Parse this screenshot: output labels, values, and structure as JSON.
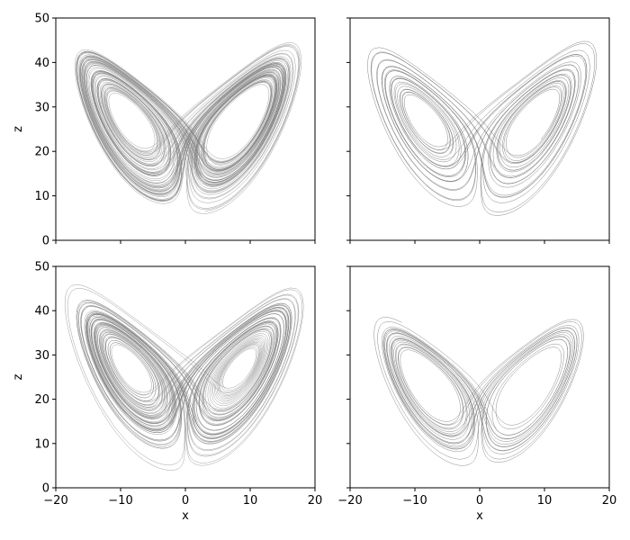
{
  "chart_data": [
    {
      "type": "line",
      "panel": "top-left",
      "description_series": "Lorenz attractor trajectory projected on x-z plane (dense)",
      "xlim": [
        -20,
        20
      ],
      "ylim": [
        0,
        50
      ],
      "xticks": [
        "−20",
        "−10",
        "0",
        "10",
        "20"
      ],
      "xtick_values": [
        -20,
        -10,
        0,
        10,
        20
      ],
      "yticks": [
        "0",
        "10",
        "20",
        "30",
        "40",
        "50"
      ],
      "ytick_values": [
        0,
        10,
        20,
        30,
        40,
        50
      ],
      "show_xticklabels": false,
      "show_yticklabels": true,
      "xlabel": "",
      "ylabel": "z",
      "line_color": "#808080",
      "sigma": 10,
      "rho": 28,
      "beta": 2.6667,
      "seed": [
        1.0,
        1.0,
        20.0
      ],
      "steps": 9000,
      "dt": 0.01,
      "skip": 200,
      "alpha": 0.75
    },
    {
      "type": "line",
      "panel": "top-right",
      "description_series": "Lorenz attractor trajectory projected on x-z plane (sparse)",
      "xlim": [
        -20,
        20
      ],
      "ylim": [
        0,
        50
      ],
      "xticks": [
        "−20",
        "−10",
        "0",
        "10",
        "20"
      ],
      "xtick_values": [
        -20,
        -10,
        0,
        10,
        20
      ],
      "yticks": [
        "0",
        "10",
        "20",
        "30",
        "40",
        "50"
      ],
      "ytick_values": [
        0,
        10,
        20,
        30,
        40,
        50
      ],
      "show_xticklabels": false,
      "show_yticklabels": false,
      "xlabel": "",
      "ylabel": "",
      "line_color": "#808080",
      "sigma": 10,
      "rho": 28,
      "beta": 2.6667,
      "seed": [
        -2.0,
        3.0,
        25.0
      ],
      "steps": 3500,
      "dt": 0.01,
      "skip": 200,
      "alpha": 0.95
    },
    {
      "type": "line",
      "panel": "bottom-left",
      "description_series": "Lorenz attractor trajectory projected on x-z plane (dense)",
      "xlim": [
        -20,
        20
      ],
      "ylim": [
        0,
        50
      ],
      "xticks": [
        "−20",
        "−10",
        "0",
        "10",
        "20"
      ],
      "xtick_values": [
        -20,
        -10,
        0,
        10,
        20
      ],
      "yticks": [
        "0",
        "10",
        "20",
        "30",
        "40",
        "50"
      ],
      "ytick_values": [
        0,
        10,
        20,
        30,
        40,
        50
      ],
      "show_xticklabels": true,
      "show_yticklabels": true,
      "xlabel": "x",
      "ylabel": "z",
      "line_color": "#808080",
      "sigma": 10,
      "rho": 28,
      "beta": 2.6667,
      "seed": [
        0.5,
        -1.5,
        15.0
      ],
      "steps": 9000,
      "dt": 0.01,
      "skip": 200,
      "alpha": 0.75
    },
    {
      "type": "line",
      "panel": "bottom-right",
      "description_series": "Lorenz attractor trajectory projected on x-z plane (sparse)",
      "xlim": [
        -20,
        20
      ],
      "ylim": [
        0,
        50
      ],
      "xticks": [
        "−20",
        "−10",
        "0",
        "10",
        "20"
      ],
      "xtick_values": [
        -20,
        -10,
        0,
        10,
        20
      ],
      "yticks": [
        "0",
        "10",
        "20",
        "30",
        "40",
        "50"
      ],
      "ytick_values": [
        0,
        10,
        20,
        30,
        40,
        50
      ],
      "show_xticklabels": true,
      "show_yticklabels": false,
      "xlabel": "x",
      "ylabel": "",
      "line_color": "#808080",
      "sigma": 10,
      "rho": 24.5,
      "beta": 2.6667,
      "seed": [
        3.0,
        2.0,
        30.0
      ],
      "steps": 3000,
      "dt": 0.01,
      "skip": 200,
      "alpha": 0.9
    }
  ]
}
